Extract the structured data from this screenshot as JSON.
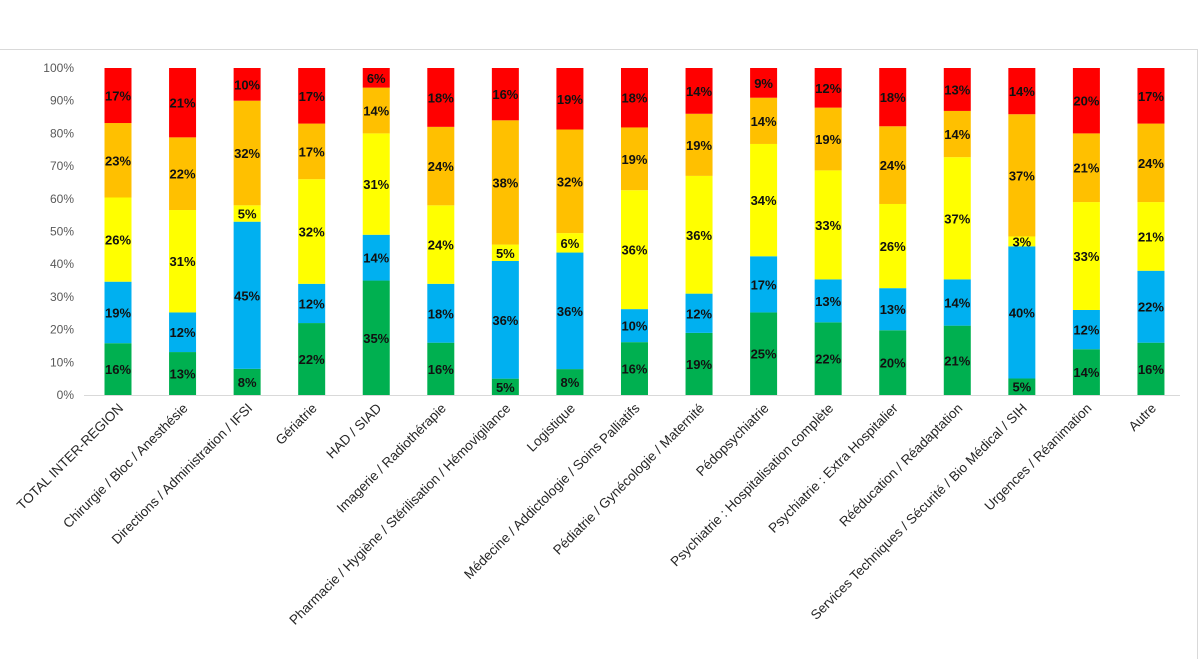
{
  "chart_data": {
    "type": "bar",
    "stacked": true,
    "percent": true,
    "ylim": [
      0,
      100
    ],
    "yticks": [
      "0%",
      "10%",
      "20%",
      "30%",
      "40%",
      "50%",
      "60%",
      "70%",
      "80%",
      "90%",
      "100%"
    ],
    "grid": false,
    "legend": "none",
    "categories": [
      "TOTAL INTER-REGION",
      "Chirurgie / Bloc / Anesthésie",
      "Directions / Administration / IFSI",
      "Gériatrie",
      "HAD / SIAD",
      "Imagerie / Radiothérapie",
      "Pharmacie / Hygiène / Stérilisation / Hémovigilance",
      "Logistique",
      "Médecine / Addictologie / Soins Palliatifs",
      "Pédiatrie / Gynécologie / Maternité",
      "Pédopsychiatrie",
      "Psychiatrie : Hospitalisation complète",
      "Psychiatrie : Extra Hospitalier",
      "Rééducation / Réadaptation",
      "Services Techniques / Sécurité / Bio Médical / SIH",
      "Urgences / Réanimation",
      "Autre"
    ],
    "series": [
      {
        "color": "#00b050",
        "values": [
          16,
          13,
          8,
          22,
          35,
          16,
          5,
          8,
          16,
          19,
          25,
          22,
          20,
          21,
          5,
          14,
          16
        ],
        "labels": [
          "16%",
          "13%",
          "8%",
          "22%",
          "35%",
          "16%",
          "5%",
          "8%",
          "16%",
          "19%",
          "25%",
          "22%",
          "20%",
          "21%",
          "5%",
          "14%",
          "16%"
        ]
      },
      {
        "color": "#00b0f0",
        "values": [
          19,
          12,
          45,
          12,
          14,
          18,
          36,
          36,
          10,
          12,
          17,
          13,
          13,
          14,
          40,
          12,
          22
        ],
        "labels": [
          "19%",
          "12%",
          "45%",
          "12%",
          "14%",
          "18%",
          "36%",
          "36%",
          "10%",
          "12%",
          "17%",
          "13%",
          "13%",
          "14%",
          "40%",
          "12%",
          "22%"
        ]
      },
      {
        "color": "#ffff00",
        "values": [
          26,
          31,
          5,
          32,
          31,
          24,
          5,
          6,
          36,
          36,
          34,
          33,
          26,
          37,
          3,
          33,
          21
        ],
        "labels": [
          "26%",
          "31%",
          "5%",
          "32%",
          "31%",
          "24%",
          "5%",
          "6%",
          "36%",
          "36%",
          "34%",
          "33%",
          "26%",
          "37%",
          "3%",
          "33%",
          "21%"
        ]
      },
      {
        "color": "#ffc000",
        "values": [
          23,
          22,
          32,
          17,
          14,
          24,
          38,
          32,
          19,
          19,
          14,
          19,
          24,
          14,
          37,
          21,
          24
        ],
        "labels": [
          "23%",
          "22%",
          "32%",
          "17%",
          "14%",
          "24%",
          "38%",
          "32%",
          "19%",
          "19%",
          "14%",
          "19%",
          "24%",
          "14%",
          "37%",
          "21%",
          "24%"
        ]
      },
      {
        "color": "#ff0000",
        "values": [
          17,
          21,
          10,
          17,
          6,
          18,
          16,
          19,
          18,
          14,
          9,
          12,
          18,
          13,
          14,
          20,
          17
        ],
        "labels": [
          "17%",
          "21%",
          "10%",
          "17%",
          "6%",
          "18%",
          "16%",
          "19%",
          "18%",
          "14%",
          "9%",
          "12%",
          "18%",
          "13%",
          "14%",
          "20%",
          "17%"
        ]
      }
    ]
  }
}
